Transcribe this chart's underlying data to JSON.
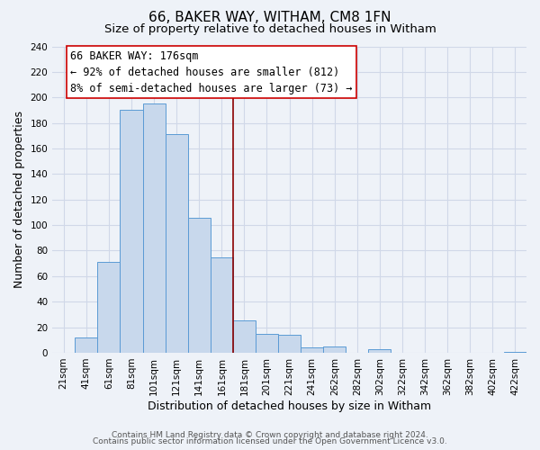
{
  "title": "66, BAKER WAY, WITHAM, CM8 1FN",
  "subtitle": "Size of property relative to detached houses in Witham",
  "xlabel": "Distribution of detached houses by size in Witham",
  "ylabel": "Number of detached properties",
  "categories": [
    "21sqm",
    "41sqm",
    "61sqm",
    "81sqm",
    "101sqm",
    "121sqm",
    "141sqm",
    "161sqm",
    "181sqm",
    "201sqm",
    "221sqm",
    "241sqm",
    "262sqm",
    "282sqm",
    "302sqm",
    "322sqm",
    "342sqm",
    "362sqm",
    "382sqm",
    "402sqm",
    "422sqm"
  ],
  "values": [
    0,
    12,
    71,
    190,
    195,
    171,
    106,
    75,
    25,
    15,
    14,
    4,
    5,
    0,
    3,
    0,
    0,
    0,
    0,
    0,
    1
  ],
  "bar_color": "#c8d8ec",
  "bar_edge_color": "#5b9bd5",
  "property_line_x": 7.5,
  "property_line_color": "#8b0000",
  "annotation_text_line1": "66 BAKER WAY: 176sqm",
  "annotation_text_line2": "← 92% of detached houses are smaller (812)",
  "annotation_text_line3": "8% of semi-detached houses are larger (73) →",
  "annotation_box_color": "#ffffff",
  "annotation_box_edge_color": "#cc0000",
  "ylim": [
    0,
    240
  ],
  "yticks": [
    0,
    20,
    40,
    60,
    80,
    100,
    120,
    140,
    160,
    180,
    200,
    220,
    240
  ],
  "footer_line1": "Contains HM Land Registry data © Crown copyright and database right 2024.",
  "footer_line2": "Contains public sector information licensed under the Open Government Licence v3.0.",
  "bg_color": "#eef2f8",
  "grid_color": "#d0d8e8",
  "title_fontsize": 11,
  "subtitle_fontsize": 9.5,
  "axis_label_fontsize": 9,
  "tick_fontsize": 7.5,
  "annotation_fontsize": 8.5,
  "footer_fontsize": 6.5
}
